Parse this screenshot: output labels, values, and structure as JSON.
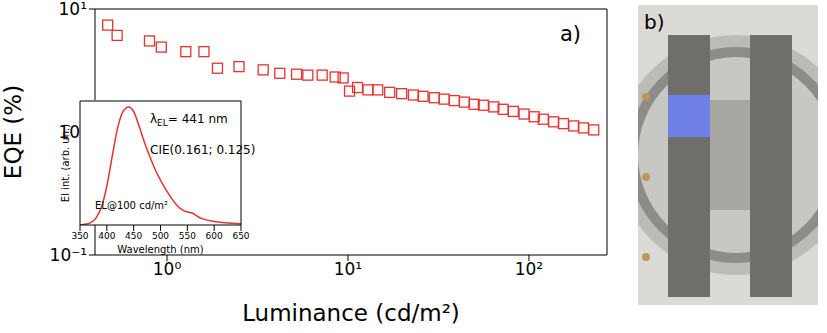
{
  "chart_data": [
    {
      "type": "scatter",
      "panel": "a)",
      "x_label": "Luminance (cd/m²)",
      "y_label": "EQE (%)",
      "log": true,
      "color": "#e8322e",
      "marker": "square",
      "x": [
        0.47,
        0.53,
        0.8,
        0.93,
        1.27,
        1.6,
        1.9,
        2.5,
        3.4,
        4.2,
        5.2,
        6.0,
        7.2,
        8.5,
        9.4,
        10.2,
        11.3,
        12.9,
        14.6,
        17,
        19.8,
        23,
        26,
        30,
        34,
        38.7,
        44,
        49.8,
        56,
        64,
        72,
        82,
        94,
        107,
        120,
        137,
        155,
        177,
        200,
        228
      ],
      "values": [
        7.4,
        6.1,
        5.5,
        4.9,
        4.5,
        4.5,
        3.3,
        3.4,
        3.2,
        3.0,
        2.95,
        2.9,
        2.9,
        2.8,
        2.75,
        2.15,
        2.3,
        2.2,
        2.2,
        2.1,
        2.05,
        2.0,
        1.95,
        1.9,
        1.85,
        1.8,
        1.75,
        1.68,
        1.65,
        1.6,
        1.53,
        1.47,
        1.4,
        1.33,
        1.27,
        1.21,
        1.17,
        1.12,
        1.08,
        1.04
      ],
      "xlim": [
        0.4,
        270
      ],
      "xticks": [
        {
          "value": 1,
          "label": "10⁰"
        },
        {
          "value": 10,
          "label": "10¹"
        },
        {
          "value": 100,
          "label": "10²"
        }
      ],
      "ylim": [
        0.1,
        10
      ],
      "yticks": [
        {
          "value": 0.1,
          "label": "10⁻¹"
        },
        {
          "value": 1,
          "label": "10⁰"
        },
        {
          "value": 10,
          "label": "10¹"
        }
      ]
    },
    {
      "type": "line",
      "x_label": "Wavelength (nm)",
      "y_label": "El int. (arb. un.)",
      "annotations": [
        "λEL= 441 nm",
        "CIE(0.161; 0.125)",
        "EL@100 cd/m²"
      ],
      "color": "#e8322e",
      "tick_labels": "x",
      "x": [
        350,
        370,
        380,
        390,
        400,
        410,
        420,
        430,
        441,
        450,
        460,
        470,
        480,
        490,
        500,
        510,
        520,
        530,
        540,
        550,
        560,
        570,
        580,
        600,
        620,
        650
      ],
      "values": [
        0,
        0.02,
        0.06,
        0.15,
        0.33,
        0.58,
        0.82,
        0.96,
        1.0,
        0.96,
        0.84,
        0.7,
        0.58,
        0.47,
        0.38,
        0.3,
        0.23,
        0.17,
        0.13,
        0.11,
        0.1,
        0.07,
        0.05,
        0.03,
        0.02,
        0.01
      ],
      "xlim": [
        350,
        650
      ],
      "xticks": [
        350,
        400,
        450,
        500,
        550,
        600,
        650
      ],
      "ylim": [
        0,
        1.05
      ]
    }
  ],
  "photo": {
    "label": "b)"
  }
}
